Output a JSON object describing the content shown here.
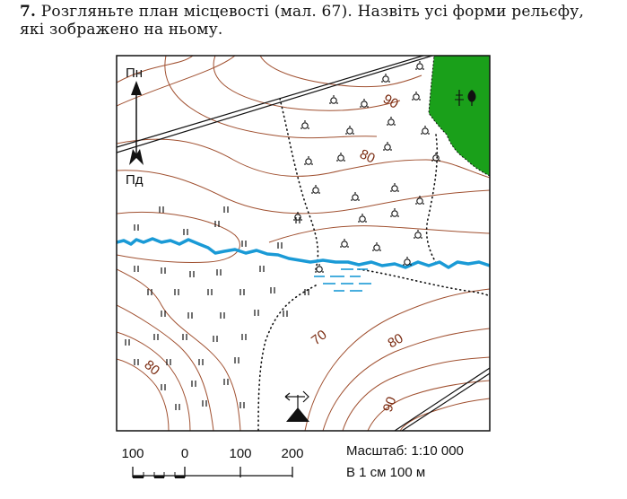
{
  "question": {
    "number": "7.",
    "text": "Розгляньте план місцевості (мал. 67). Назвіть усі форми рельєфу, які зображено на ньому."
  },
  "compass": {
    "north": "Пн",
    "south": "Пд"
  },
  "contour_labels": [
    "90",
    "80",
    "70",
    "80",
    "80",
    "90"
  ],
  "scale_bar": {
    "ticks": [
      "100",
      "0",
      "100",
      "200"
    ]
  },
  "scale_text": {
    "ratio": "Масштаб: 1:10 000",
    "named": "В 1 см 100 м"
  },
  "symbols": {
    "meadow": "\"",
    "bush": "ò",
    "forest": "forest-icon",
    "wind_station": "wind-station-icon"
  },
  "colors": {
    "river": "#1a9ad6",
    "forest": "#1aa01a",
    "contour": "#a05030",
    "contour_label": "#7a2a10"
  }
}
